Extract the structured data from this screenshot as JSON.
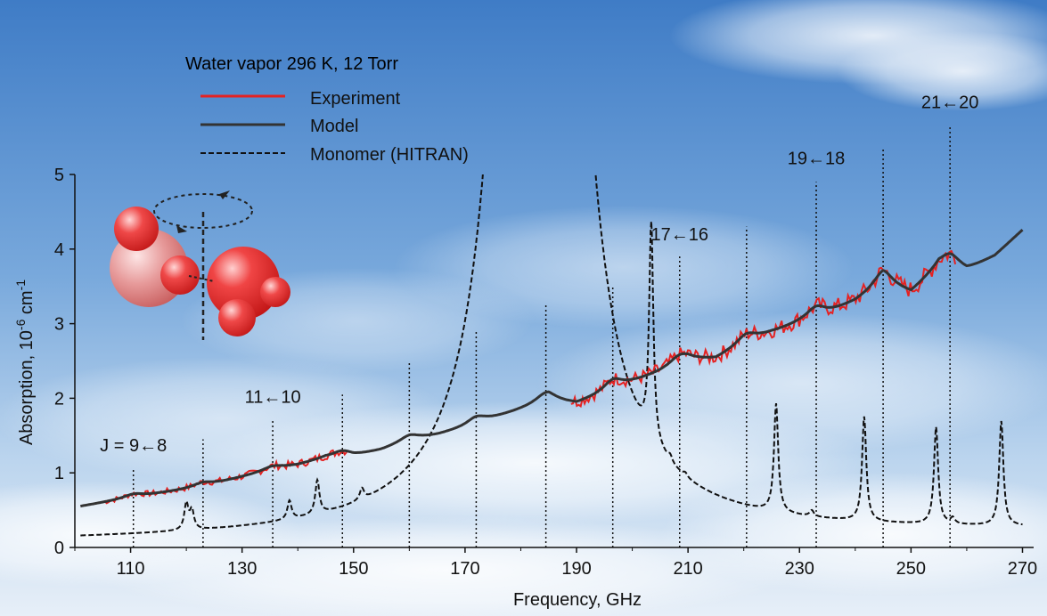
{
  "chart_data": {
    "type": "line",
    "title": "Water vapor   296 K,  12 Torr",
    "xlabel": "Frequency,  GHz",
    "ylabel_main": "Absorption, 10",
    "ylabel_sup1": "-6",
    "ylabel_mid": " cm",
    "ylabel_sup2": "-1",
    "xlim": [
      100,
      272
    ],
    "ylim": [
      0,
      5
    ],
    "x_ticks": [
      110,
      130,
      150,
      170,
      190,
      210,
      230,
      250,
      270
    ],
    "y_ticks": [
      0,
      1,
      2,
      3,
      4,
      5
    ],
    "legend": [
      {
        "name": "Experiment",
        "color": "#e52222",
        "style": "solid"
      },
      {
        "name": "Model",
        "color": "#333333",
        "style": "solid"
      },
      {
        "name": "Monomer (HITRAN)",
        "color": "#111111",
        "style": "dashed"
      }
    ],
    "dimer_line_positions": [
      110.5,
      123,
      135.5,
      148,
      160,
      172,
      184.5,
      196.5,
      208.5,
      220.5,
      233,
      245,
      257
    ],
    "dimer_line_heights": [
      1.05,
      1.45,
      1.7,
      2.05,
      2.5,
      2.9,
      3.25,
      3.5,
      3.9,
      4.3,
      4.9,
      5.35,
      5.65
    ],
    "band_labels": [
      {
        "text": "J = 9←8",
        "x": 110.5
      },
      {
        "text": "11←10",
        "x": 135.5
      },
      {
        "text": "17←16",
        "x": 208.5
      },
      {
        "text": "19←18",
        "x": 233
      },
      {
        "text": "21←20",
        "x": 257
      }
    ],
    "model": {
      "name": "Model",
      "x": [
        101,
        105,
        110,
        115,
        120,
        125,
        130,
        135,
        140,
        145,
        150,
        155,
        160,
        165,
        170,
        175,
        180,
        185,
        190,
        195,
        200,
        205,
        210,
        215,
        220,
        225,
        230,
        235,
        240,
        245,
        250,
        255,
        260,
        265,
        270
      ],
      "y": [
        0.55,
        0.6,
        0.66,
        0.72,
        0.78,
        0.85,
        0.94,
        1.03,
        1.1,
        1.2,
        1.22,
        1.3,
        1.42,
        1.5,
        1.6,
        1.72,
        1.84,
        1.96,
        1.92,
        2.05,
        2.2,
        2.34,
        2.5,
        2.52,
        2.72,
        2.87,
        3.0,
        3.12,
        3.28,
        3.5,
        3.4,
        3.75,
        3.7,
        3.9,
        4.25
      ],
      "peaks": [
        110.5,
        123,
        135.5,
        148,
        160,
        172,
        184.5,
        196.5,
        208.5,
        220.5,
        233,
        245,
        257
      ],
      "peak_heights": [
        0.05,
        0.05,
        0.05,
        0.08,
        0.08,
        0.1,
        0.12,
        0.15,
        0.12,
        0.12,
        0.15,
        0.2,
        0.2
      ]
    },
    "experiment": {
      "name": "Experiment",
      "segments": [
        [
          105,
          149
        ],
        [
          189,
          258
        ]
      ]
    },
    "monomer": {
      "name": "Monomer (HITRAN)",
      "baseline": 0.08,
      "lines": [
        {
          "x": 120,
          "h": 0.35
        },
        {
          "x": 121,
          "h": 0.25
        },
        {
          "x": 138.5,
          "h": 0.25
        },
        {
          "x": 143.5,
          "h": 0.45
        },
        {
          "x": 151.5,
          "h": 0.15
        },
        {
          "x": 183.3,
          "h": 60
        },
        {
          "x": 203.4,
          "h": 2.9
        },
        {
          "x": 206.8,
          "h": 0.08
        },
        {
          "x": 209.5,
          "h": 0.05
        },
        {
          "x": 225.8,
          "h": 1.45
        },
        {
          "x": 232.2,
          "h": 0.08
        },
        {
          "x": 241.6,
          "h": 1.4
        },
        {
          "x": 254.5,
          "h": 1.3
        },
        {
          "x": 257.5,
          "h": 0.08
        },
        {
          "x": 266.2,
          "h": 1.4
        }
      ],
      "clip_break": [
        180.2,
        187.3
      ]
    }
  }
}
